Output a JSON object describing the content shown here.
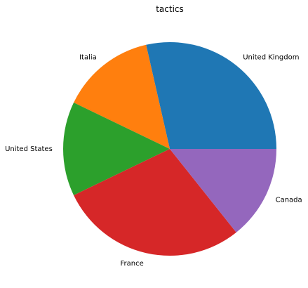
{
  "chart_data": {
    "type": "pie",
    "title": "tactics",
    "categories": [
      "United Kingdom",
      "Italia",
      "United States",
      "France",
      "Canada"
    ],
    "values": [
      30,
      15,
      15,
      30,
      15
    ],
    "colors": [
      "#1f77b4",
      "#ff7f0e",
      "#2ca02c",
      "#d62728",
      "#9467bd"
    ],
    "start_angle_deg": 0,
    "direction": "counterclockwise"
  }
}
